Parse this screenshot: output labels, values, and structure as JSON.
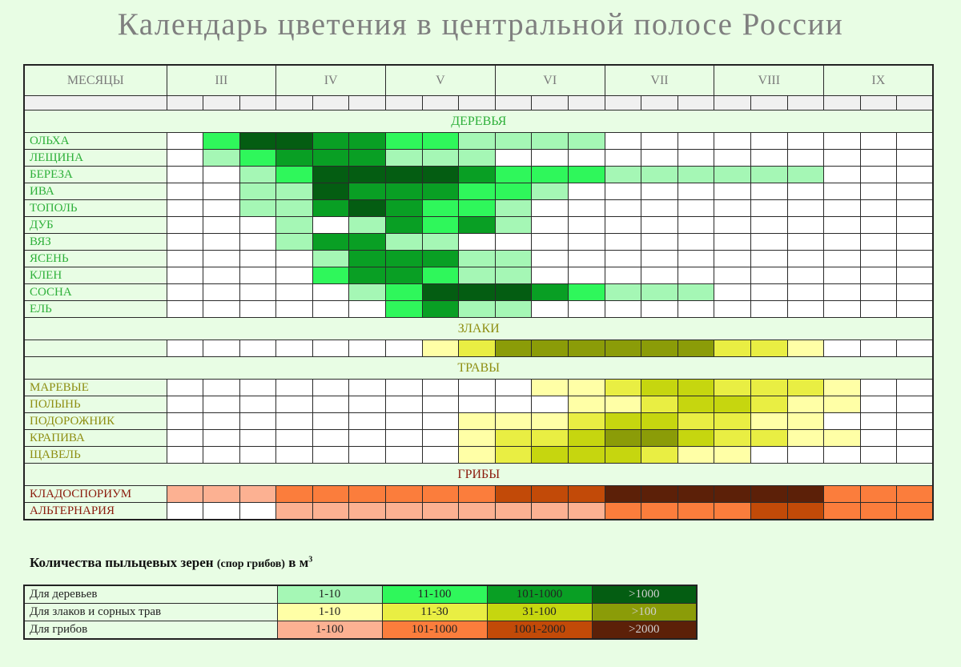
{
  "title": "Календарь цветения в центральной полосе России",
  "month_header": "МЕСЯЦЫ",
  "months": [
    "III",
    "IV",
    "V",
    "VI",
    "VII",
    "VIII",
    "IX"
  ],
  "colors": {
    "trees": [
      "#ffffff",
      "#a5f7b5",
      "#2ff75b",
      "#099f24",
      "#045d12"
    ],
    "grasses": [
      "#ffffff",
      "#ffffa6",
      "#e9ee43",
      "#c6d60f",
      "#8b9c08"
    ],
    "mushrooms": [
      "#ffffff",
      "#fcb192",
      "#fb7d3c",
      "#c24a08",
      "#5c2008"
    ]
  },
  "legend_title": {
    "main": "Количества пыльцевых зерен",
    "paren": "(спор грибов)",
    "unit": "в м",
    "exp": "3"
  },
  "chart_data": {
    "type": "heatmap",
    "title": "Календарь цветения в центральной полосе России",
    "x_label": "МЕСЯЦЫ",
    "months": [
      "III",
      "IV",
      "V",
      "VI",
      "VII",
      "VIII",
      "IX"
    ],
    "columns_per_month": 3,
    "level_scale": "0 = нет, 1..4 = градации концентрации из легенды",
    "sections": [
      {
        "key": "trees",
        "label": "ДЕРЕВЬЯ",
        "rows": [
          {
            "name": "ОЛЬХА",
            "levels": [
              0,
              2,
              4,
              4,
              3,
              3,
              2,
              2,
              1,
              1,
              1,
              1,
              0,
              0,
              0,
              0,
              0,
              0,
              0,
              0,
              0
            ]
          },
          {
            "name": "ЛЕЩИНА",
            "levels": [
              0,
              1,
              2,
              3,
              3,
              3,
              1,
              1,
              1,
              0,
              0,
              0,
              0,
              0,
              0,
              0,
              0,
              0,
              0,
              0,
              0
            ]
          },
          {
            "name": "БЕРЕЗА",
            "levels": [
              0,
              0,
              1,
              2,
              4,
              4,
              4,
              4,
              3,
              2,
              2,
              2,
              1,
              1,
              1,
              1,
              1,
              1,
              0,
              0,
              0
            ]
          },
          {
            "name": "ИВА",
            "levels": [
              0,
              0,
              1,
              1,
              4,
              3,
              3,
              3,
              2,
              2,
              1,
              0,
              0,
              0,
              0,
              0,
              0,
              0,
              0,
              0,
              0
            ]
          },
          {
            "name": "ТОПОЛЬ",
            "levels": [
              0,
              0,
              1,
              1,
              3,
              4,
              3,
              2,
              2,
              1,
              0,
              0,
              0,
              0,
              0,
              0,
              0,
              0,
              0,
              0,
              0
            ]
          },
          {
            "name": "ДУБ",
            "levels": [
              0,
              0,
              0,
              1,
              0,
              1,
              3,
              2,
              3,
              1,
              0,
              0,
              0,
              0,
              0,
              0,
              0,
              0,
              0,
              0,
              0
            ]
          },
          {
            "name": "ВЯЗ",
            "levels": [
              0,
              0,
              0,
              1,
              3,
              3,
              1,
              1,
              0,
              0,
              0,
              0,
              0,
              0,
              0,
              0,
              0,
              0,
              0,
              0,
              0
            ]
          },
          {
            "name": "ЯСЕНЬ",
            "levels": [
              0,
              0,
              0,
              0,
              1,
              3,
              3,
              3,
              1,
              1,
              0,
              0,
              0,
              0,
              0,
              0,
              0,
              0,
              0,
              0,
              0
            ]
          },
          {
            "name": "КЛЕН",
            "levels": [
              0,
              0,
              0,
              0,
              2,
              3,
              3,
              2,
              1,
              1,
              0,
              0,
              0,
              0,
              0,
              0,
              0,
              0,
              0,
              0,
              0
            ]
          },
          {
            "name": "СОСНА",
            "levels": [
              0,
              0,
              0,
              0,
              0,
              1,
              2,
              4,
              4,
              4,
              3,
              2,
              1,
              1,
              1,
              0,
              0,
              0,
              0,
              0,
              0
            ]
          },
          {
            "name": "ЕЛЬ",
            "levels": [
              0,
              0,
              0,
              0,
              0,
              0,
              2,
              3,
              1,
              1,
              0,
              0,
              0,
              0,
              0,
              0,
              0,
              0,
              0,
              0,
              0
            ]
          }
        ]
      },
      {
        "key": "grasses",
        "label": "ЗЛАКИ",
        "rows": [
          {
            "name": "",
            "levels": [
              0,
              0,
              0,
              0,
              0,
              0,
              0,
              1,
              2,
              4,
              4,
              4,
              4,
              4,
              4,
              2,
              2,
              1,
              0,
              0,
              0
            ]
          }
        ]
      },
      {
        "key": "grasses",
        "label": "ТРАВЫ",
        "rows": [
          {
            "name": "МАРЕВЫЕ",
            "levels": [
              0,
              0,
              0,
              0,
              0,
              0,
              0,
              0,
              0,
              0,
              1,
              1,
              2,
              3,
              3,
              2,
              2,
              2,
              1,
              0,
              0
            ]
          },
          {
            "name": "ПОЛЫНЬ",
            "levels": [
              0,
              0,
              0,
              0,
              0,
              0,
              0,
              0,
              0,
              0,
              0,
              1,
              1,
              2,
              3,
              3,
              2,
              1,
              1,
              0,
              0
            ]
          },
          {
            "name": "ПОДОРОЖНИК",
            "levels": [
              0,
              0,
              0,
              0,
              0,
              0,
              0,
              0,
              1,
              1,
              1,
              2,
              3,
              3,
              2,
              2,
              1,
              1,
              0,
              0,
              0
            ]
          },
          {
            "name": "КРАПИВА",
            "levels": [
              0,
              0,
              0,
              0,
              0,
              0,
              0,
              0,
              1,
              2,
              2,
              3,
              4,
              4,
              3,
              2,
              2,
              1,
              1,
              0,
              0
            ]
          },
          {
            "name": "ЩАВЕЛЬ",
            "levels": [
              0,
              0,
              0,
              0,
              0,
              0,
              0,
              0,
              1,
              2,
              3,
              3,
              3,
              2,
              1,
              1,
              0,
              0,
              0,
              0,
              0
            ]
          }
        ]
      },
      {
        "key": "mushrooms",
        "label": "ГРИБЫ",
        "rows": [
          {
            "name": "КЛАДОСПОРИУМ",
            "levels": [
              1,
              1,
              1,
              2,
              2,
              2,
              2,
              2,
              2,
              3,
              3,
              3,
              4,
              4,
              4,
              4,
              4,
              4,
              2,
              2,
              2
            ]
          },
          {
            "name": "АЛЬТЕРНАРИЯ",
            "levels": [
              0,
              0,
              0,
              1,
              1,
              1,
              1,
              1,
              1,
              1,
              1,
              1,
              2,
              2,
              2,
              2,
              3,
              3,
              2,
              2,
              2
            ]
          }
        ]
      }
    ],
    "legend": {
      "rows": [
        {
          "key": "trees",
          "label": "Для деревьев",
          "ranges": [
            "1-10",
            "11-100",
            "101-1000",
            ">1000"
          ]
        },
        {
          "key": "grasses",
          "label": "Для злаков и сорных трав",
          "ranges": [
            "1-10",
            "11-30",
            "31-100",
            ">100"
          ]
        },
        {
          "key": "mushrooms",
          "label": "Для грибов",
          "ranges": [
            "1-100",
            "101-1000",
            "1001-2000",
            ">2000"
          ]
        }
      ]
    }
  }
}
